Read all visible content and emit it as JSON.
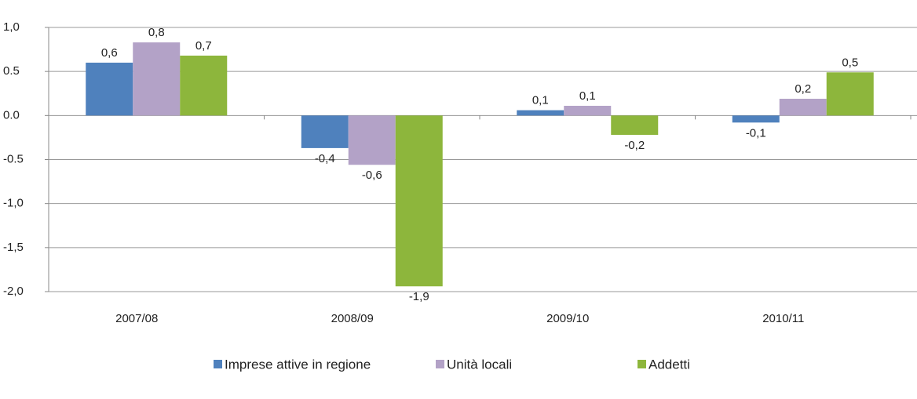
{
  "chart_data": {
    "type": "bar",
    "categories": [
      "2007/08",
      "2008/09",
      "2009/10",
      "2010/11"
    ],
    "series": [
      {
        "name": "Imprese attive in regione",
        "color": "#4f81bd",
        "values": [
          0.6,
          -0.37,
          0.06,
          -0.08
        ],
        "value_labels": [
          "0,6",
          "-0,4",
          "0,1",
          "-0,1"
        ]
      },
      {
        "name": "Unità locali",
        "color": "#b3a2c7",
        "values": [
          0.83,
          -0.56,
          0.11,
          0.19
        ],
        "value_labels": [
          "0,8",
          "-0,6",
          "0,1",
          "0,2"
        ]
      },
      {
        "name": "Addetti",
        "color": "#8db63c",
        "values": [
          0.68,
          -1.94,
          -0.22,
          0.49
        ],
        "value_labels": [
          "0,7",
          "-1,9",
          "-0,2",
          "0,5"
        ]
      }
    ],
    "ylim": [
      -2,
      1
    ],
    "yticks": [
      {
        "value": -2,
        "label": "-2,0"
      },
      {
        "value": -1.5,
        "label": "-1,5"
      },
      {
        "value": -1,
        "label": "-1,0"
      },
      -0.5,
      {
        "value": 0,
        "label": "0.0"
      },
      0.5,
      {
        "value": 1,
        "label": "1,0"
      }
    ],
    "grid": true,
    "legend": "bottom"
  }
}
